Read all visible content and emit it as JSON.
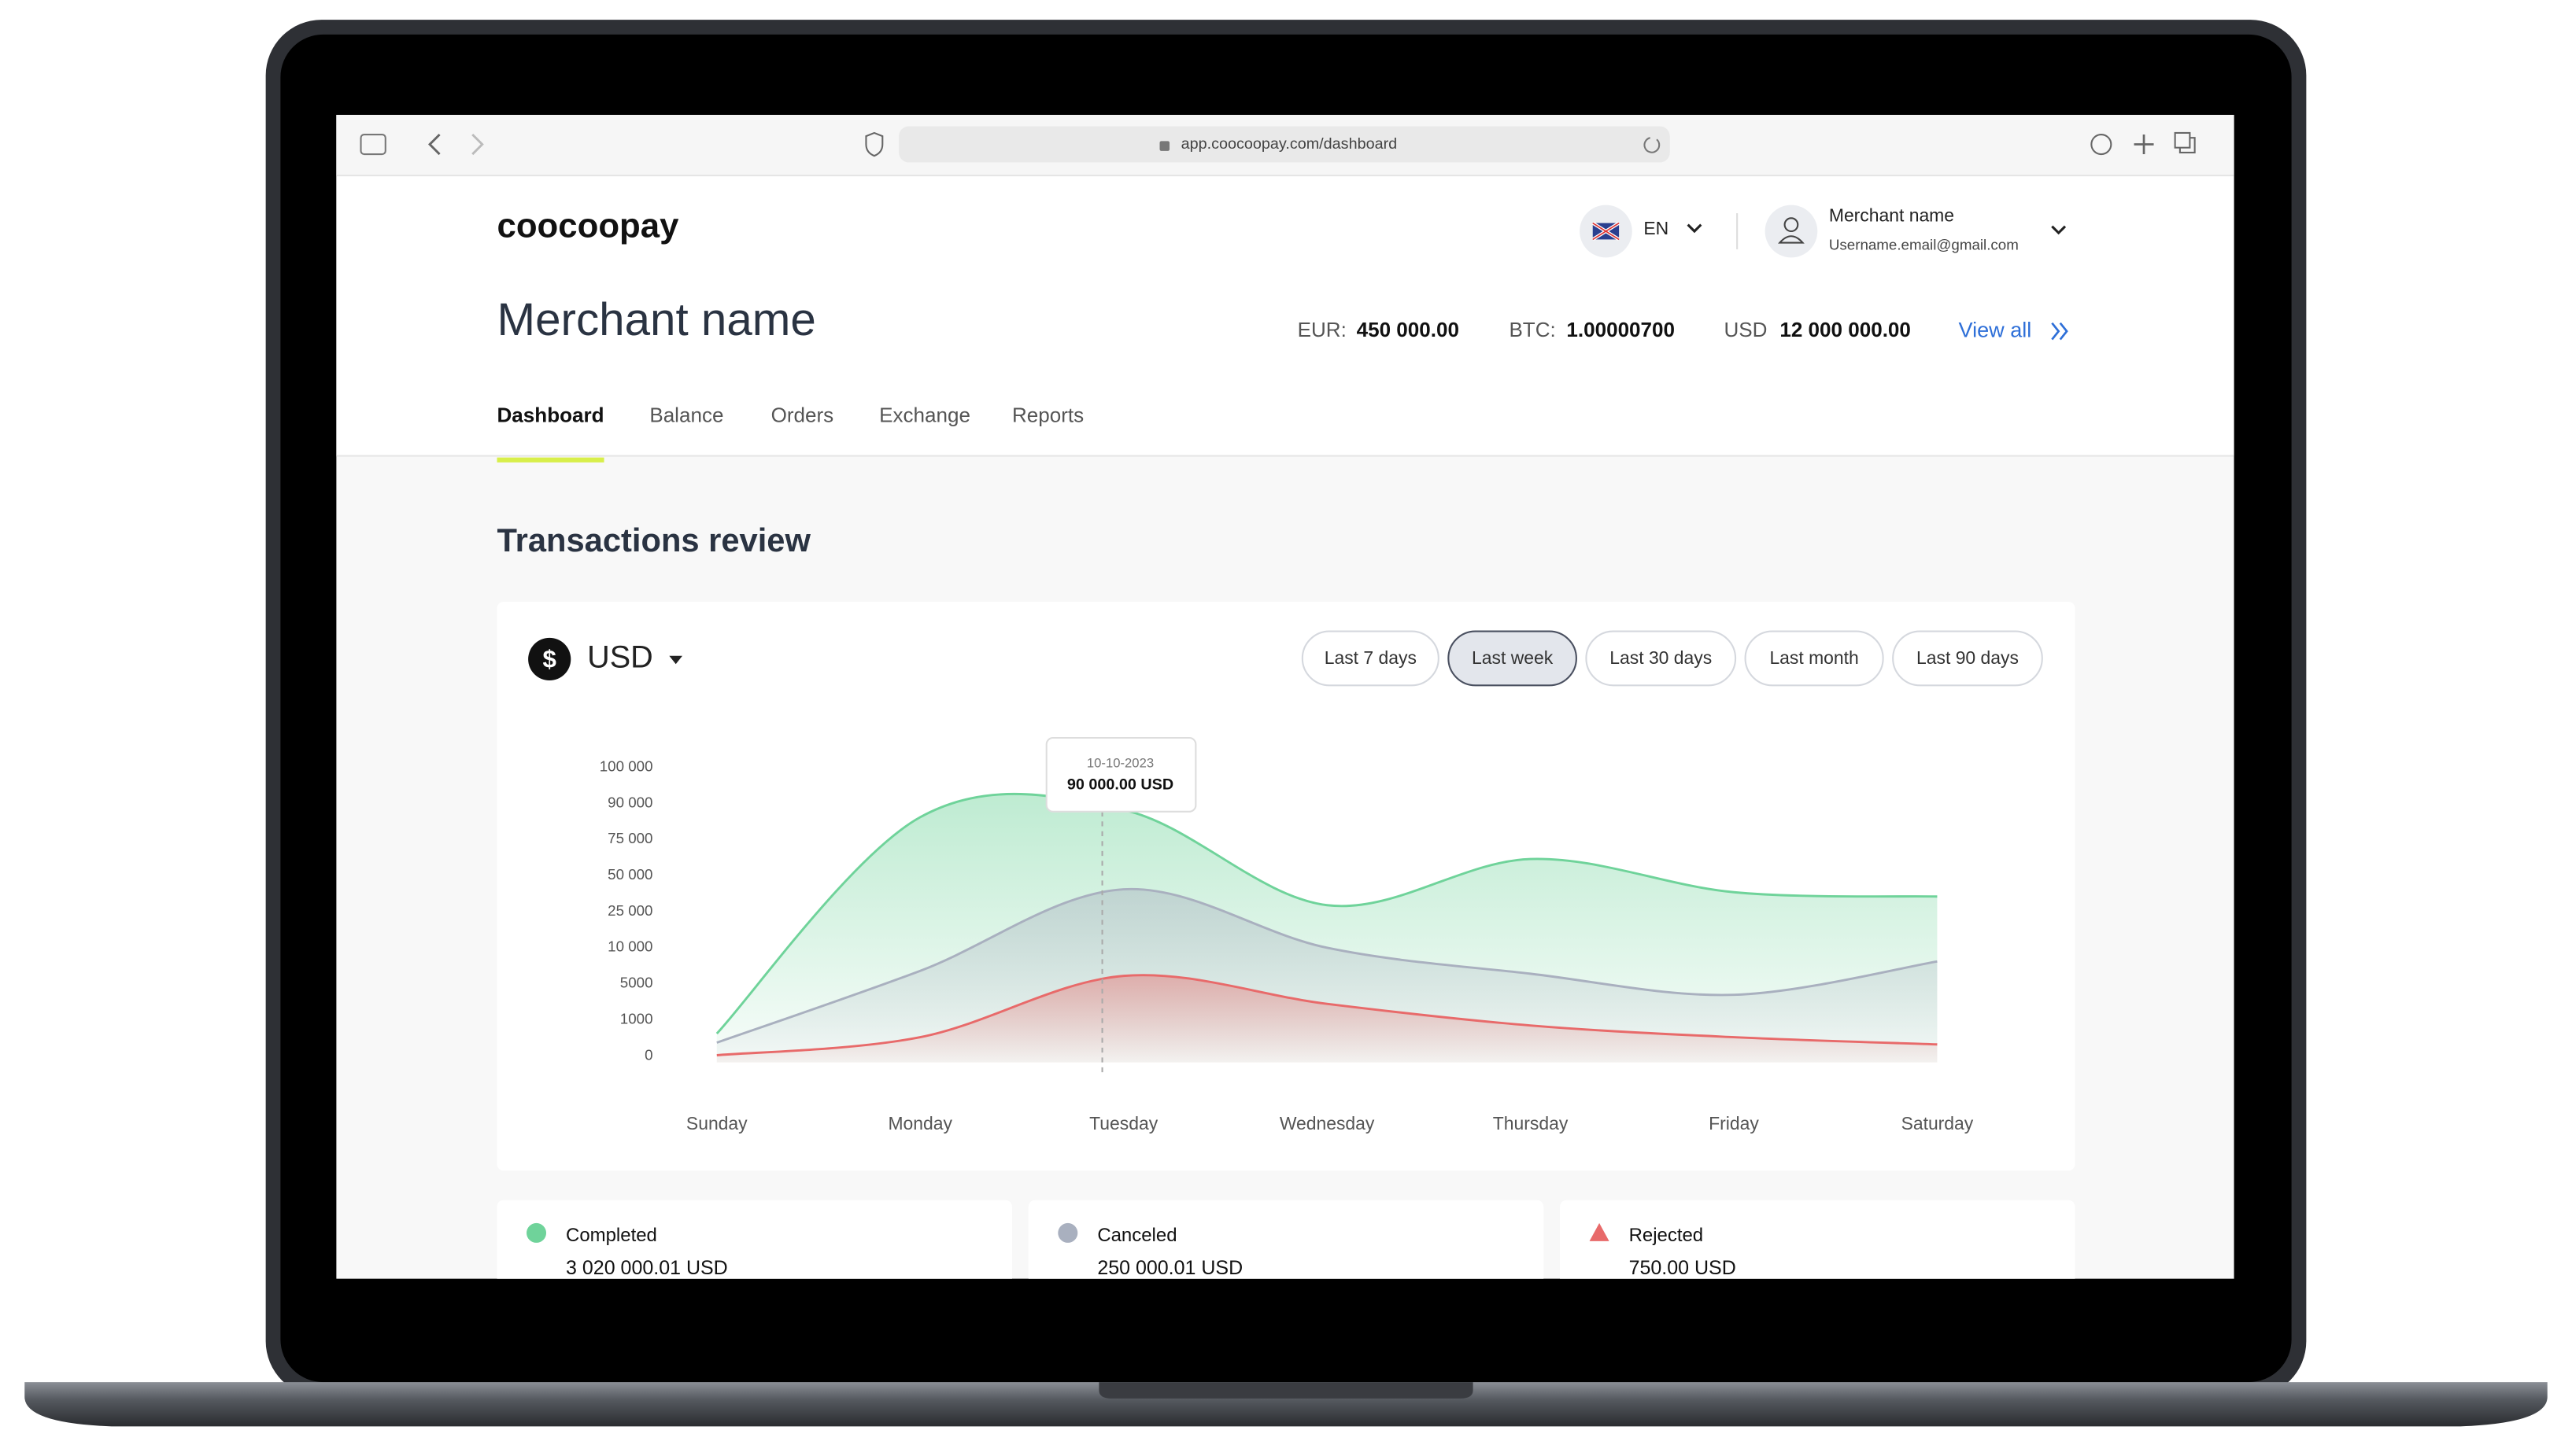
{
  "browser": {
    "url": "app.coocoopay.com/dashboard"
  },
  "header": {
    "logo": "coocoopay",
    "language": "EN",
    "user_name": "Merchant name",
    "user_email": "Username.email@gmail.com"
  },
  "page_title": "Merchant name",
  "balances": [
    {
      "label": "EUR:",
      "amount": "450 000.00"
    },
    {
      "label": "BTC:",
      "amount": "1.00000700"
    },
    {
      "label": "USD",
      "amount": "12 000 000.00"
    }
  ],
  "view_all": "View all",
  "tabs": [
    "Dashboard",
    "Balance",
    "Orders",
    "Exchange",
    "Reports"
  ],
  "active_tab": 0,
  "section_title": "Transactions review",
  "currency": "USD",
  "periods": [
    "Last 7 days",
    "Last week",
    "Last 30 days",
    "Last month",
    "Last 90 days"
  ],
  "active_period": 1,
  "chart_data": {
    "type": "area",
    "categories": [
      "Sunday",
      "Monday",
      "Tuesday",
      "Wednesday",
      "Thursday",
      "Friday",
      "Saturday"
    ],
    "series": [
      {
        "color": "#6fd39a",
        "values": [
          800,
          87000,
          90000,
          34000,
          66000,
          43000,
          40000
        ]
      },
      {
        "color": "#a9b0bf",
        "values": [
          550,
          7700,
          45000,
          12700,
          7300,
          4500,
          9000
        ]
      },
      {
        "color": "#e86a6a",
        "values": [
          200,
          700,
          7000,
          3500,
          1100,
          700,
          500
        ]
      }
    ],
    "ylim": [
      0,
      100000
    ],
    "yticks": [
      0,
      1000,
      5000,
      {
        "value": 10000,
        "label": "10 000"
      },
      {
        "value": 25000,
        "label": "25 000"
      },
      {
        "value": 50000,
        "label": "50 000"
      },
      {
        "value": 75000,
        "label": "75 000"
      },
      {
        "value": 90000,
        "label": "90 000"
      },
      {
        "value": 100000,
        "label": "100 000"
      }
    ],
    "grid": false,
    "tooltip": {
      "date": "10-10-2023",
      "value": "90 000.00 USD"
    }
  },
  "stats": [
    {
      "label": "Completed",
      "amount": "3 020 000.01 USD"
    },
    {
      "label": "Canceled",
      "amount": "250 000.01 USD"
    },
    {
      "label": "Rejected",
      "amount": "750.00 USD"
    }
  ]
}
